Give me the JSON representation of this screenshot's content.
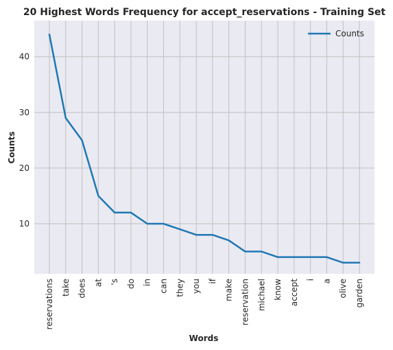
{
  "chart_data": {
    "type": "line",
    "title": "20 Highest Words Frequency for accept_reservations - Training Set",
    "xlabel": "Words",
    "ylabel": "Counts",
    "categories": [
      "reservations",
      "take",
      "does",
      "at",
      "'s",
      "do",
      "in",
      "can",
      "they",
      "you",
      "if",
      "make",
      "reservation",
      "michael",
      "know",
      "accept",
      "i",
      "a",
      "olive",
      "garden"
    ],
    "series": [
      {
        "name": "Counts",
        "values": [
          44,
          29,
          25,
          15,
          12,
          12,
          10,
          10,
          9,
          8,
          8,
          7,
          5,
          5,
          4,
          4,
          4,
          4,
          3,
          3
        ]
      }
    ],
    "ylim": [
      1,
      46.5
    ],
    "yticks": [
      10,
      20,
      30,
      40
    ],
    "ytick_labels": [
      "10",
      "20",
      "30",
      "40"
    ],
    "grid": true,
    "legend_position": "top-right",
    "colors": {
      "line": "#1f77b4",
      "plot_bg": "#eaeaf2",
      "grid": "#c0c0c0"
    }
  }
}
